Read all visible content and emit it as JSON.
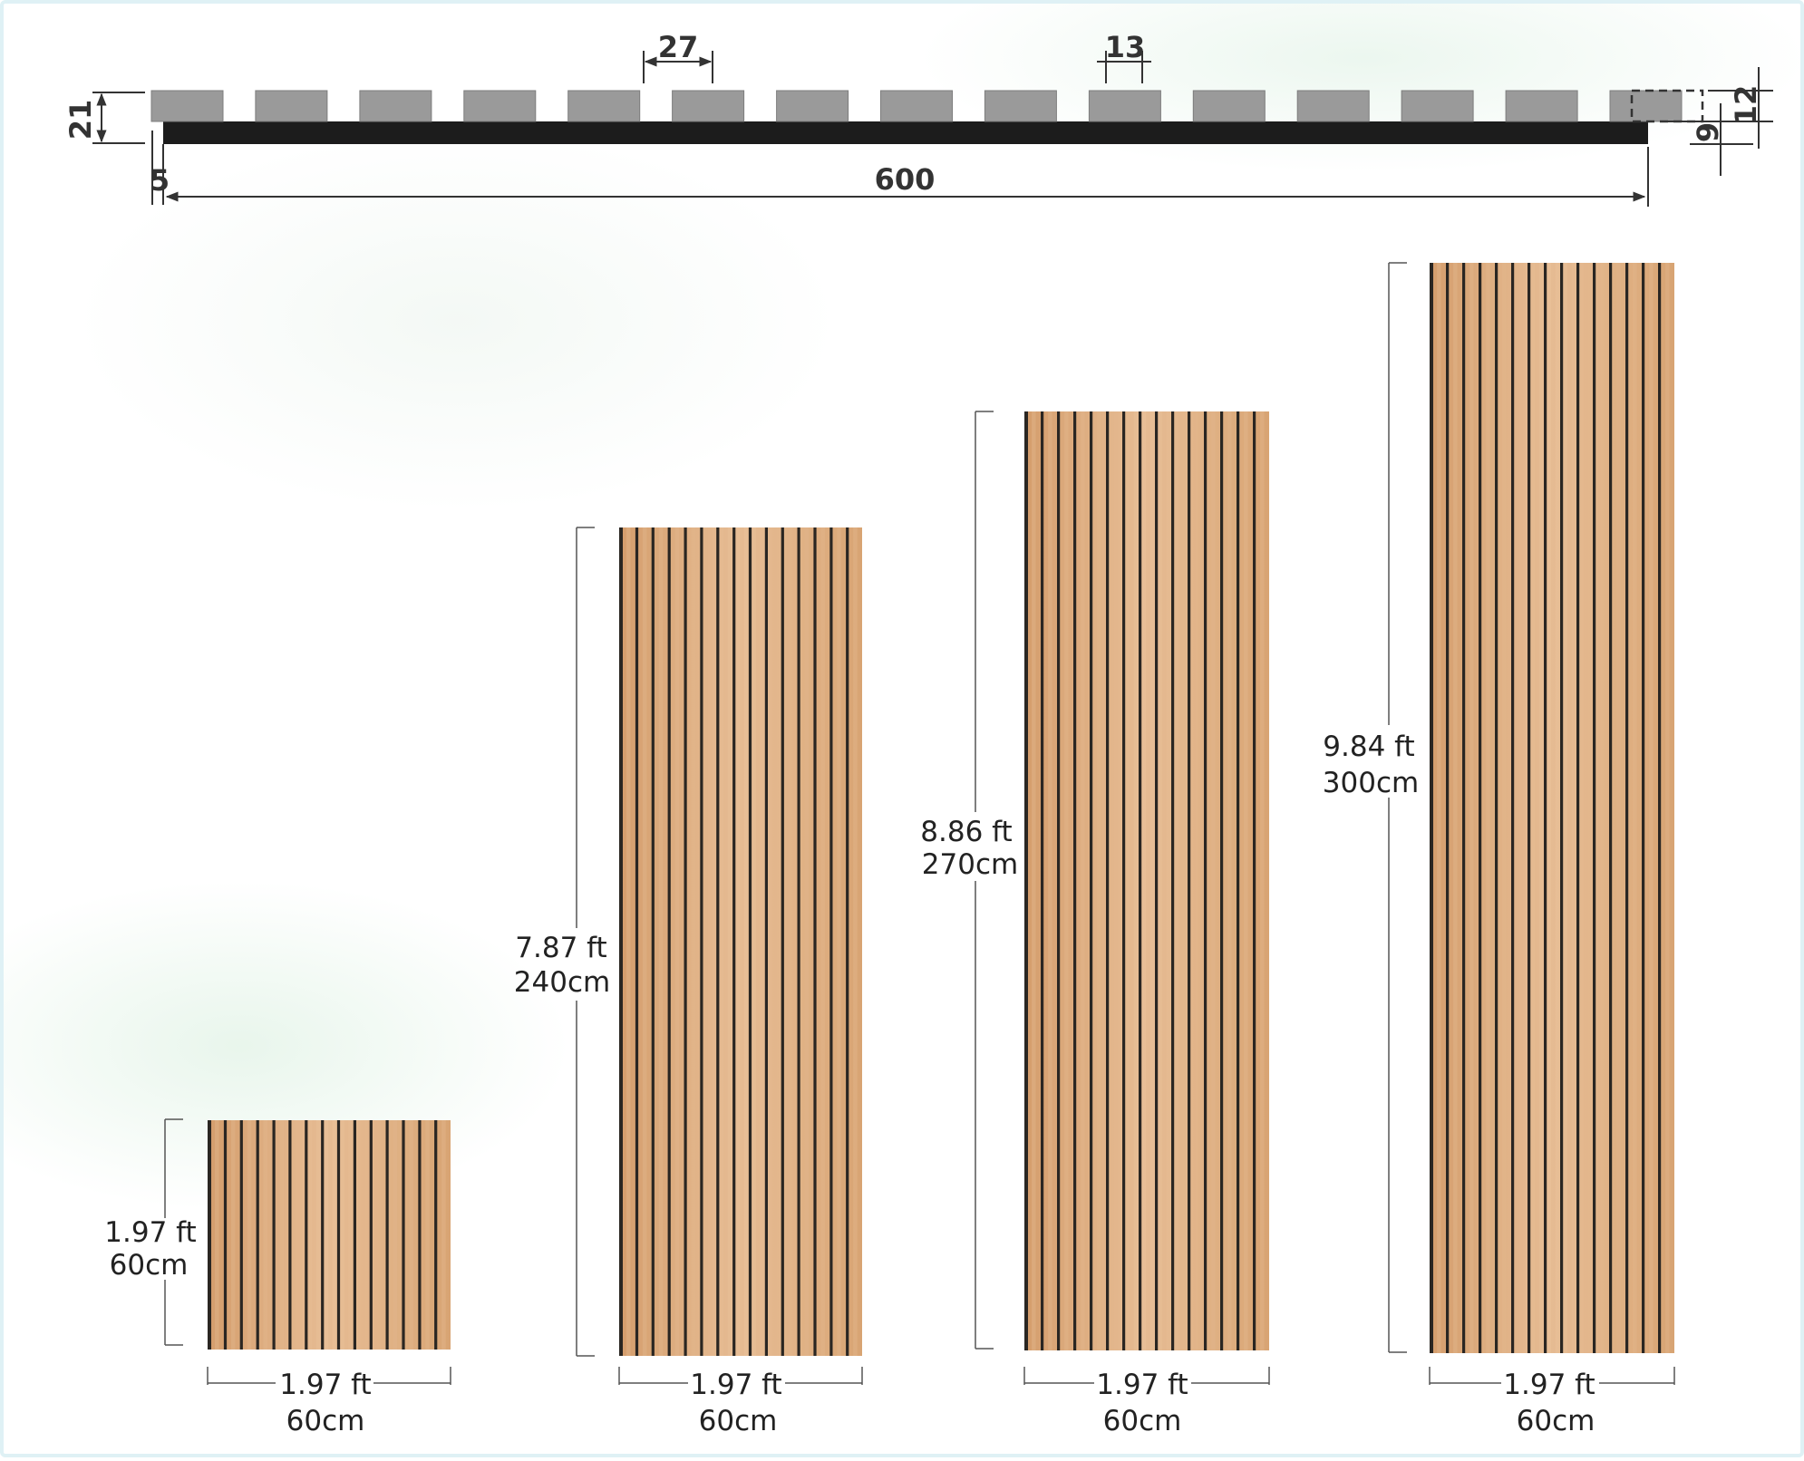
{
  "cross_section": {
    "slat_width": "27",
    "gap_width": "13",
    "total_height": "21",
    "slat_thickness": "12",
    "backing_thickness": "9",
    "edge_offset": "5",
    "total_width": "600",
    "slat_count": 15,
    "colors": {
      "slat": "#9a9a9a",
      "backing": "#1c1c1c",
      "dimension_line": "#333333"
    }
  },
  "panels": [
    {
      "id": "60",
      "height_ft": "1.97 ft",
      "height_cm": "60cm",
      "width_ft": "1.97 ft",
      "width_cm": "60cm"
    },
    {
      "id": "240",
      "height_ft": "7.87 ft",
      "height_cm": "240cm",
      "width_ft": "1.97 ft",
      "width_cm": "60cm"
    },
    {
      "id": "270",
      "height_ft": "8.86 ft",
      "height_cm": "270cm",
      "width_ft": "1.97 ft",
      "width_cm": "60cm"
    },
    {
      "id": "300",
      "height_ft": "9.84 ft",
      "height_cm": "300cm",
      "width_ft": "1.97 ft",
      "width_cm": "60cm"
    }
  ],
  "panel_colors": {
    "wood_light": "#e3b68c",
    "wood_mid": "#d9a677",
    "wood_dark": "#c99466",
    "groove": "#2a2622"
  },
  "slat_count_per_panel": 15
}
